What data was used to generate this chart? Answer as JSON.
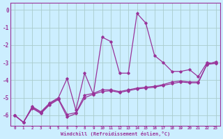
{
  "background_color": "#cceeff",
  "grid_color": "#aacccc",
  "line_color": "#993399",
  "xlim": [
    -0.5,
    23.5
  ],
  "ylim": [
    -6.6,
    0.4
  ],
  "yticks": [
    0,
    -1,
    -2,
    -3,
    -4,
    -5,
    -6
  ],
  "xticks": [
    0,
    1,
    2,
    3,
    4,
    5,
    6,
    7,
    8,
    9,
    10,
    11,
    12,
    13,
    14,
    15,
    16,
    17,
    18,
    19,
    20,
    21,
    22,
    23
  ],
  "xlabel": "Windchill (Refroidissement éolien,°C)",
  "series1_x": [
    0,
    1,
    2,
    3,
    4,
    5,
    6,
    7,
    8,
    9,
    10,
    11,
    12,
    13,
    14,
    15,
    16,
    17,
    18,
    19,
    20,
    21,
    22,
    23
  ],
  "series1_y": [
    -6.0,
    -6.4,
    -5.6,
    -5.9,
    -5.4,
    -5.1,
    -6.1,
    -5.9,
    -5.0,
    -4.8,
    -4.65,
    -4.6,
    -4.7,
    -4.6,
    -4.5,
    -4.45,
    -4.4,
    -4.3,
    -4.2,
    -4.1,
    -4.15,
    -4.15,
    -3.1,
    -3.05
  ],
  "series2_x": [
    0,
    1,
    2,
    3,
    4,
    5,
    6,
    7,
    8,
    9,
    10,
    11,
    12,
    13,
    14,
    15,
    16,
    17,
    18,
    19,
    20,
    21,
    22,
    23
  ],
  "series2_y": [
    -6.0,
    -6.4,
    -5.5,
    -5.8,
    -5.3,
    -5.0,
    -3.9,
    -5.7,
    -3.6,
    -4.8,
    -1.55,
    -1.8,
    -3.6,
    -3.6,
    -0.2,
    -0.75,
    -2.6,
    -3.0,
    -3.5,
    -3.5,
    -3.4,
    -3.8,
    -3.0,
    -3.05
  ],
  "series3_x": [
    0,
    1,
    2,
    3,
    4,
    5,
    6,
    7,
    8,
    9,
    10,
    11,
    12,
    13,
    14,
    15,
    16,
    17,
    18,
    19,
    20,
    21,
    22,
    23
  ],
  "series3_y": [
    -6.0,
    -6.4,
    -5.55,
    -5.85,
    -5.35,
    -5.05,
    -5.95,
    -5.85,
    -4.85,
    -4.75,
    -4.55,
    -4.55,
    -4.65,
    -4.55,
    -4.45,
    -4.4,
    -4.35,
    -4.25,
    -4.1,
    -4.05,
    -4.1,
    -4.1,
    -3.1,
    -2.95
  ]
}
